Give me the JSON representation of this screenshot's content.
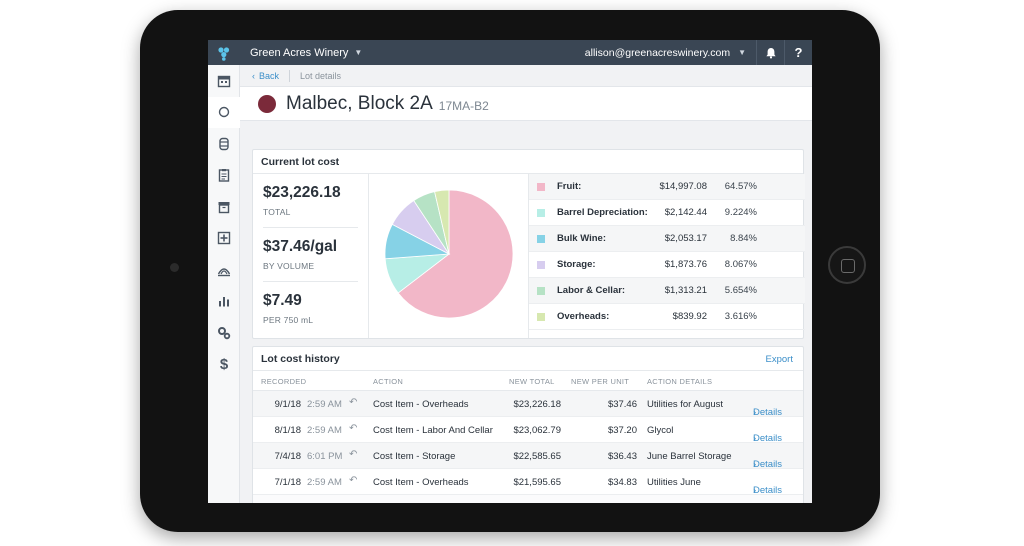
{
  "app": {
    "winery": "Green Acres Winery",
    "user_email": "allison@greenacreswinery.com"
  },
  "icons": {
    "brand": "grape-logo-icon",
    "bell": "bell-icon",
    "help": "help-icon"
  },
  "sidebar": {
    "items": [
      {
        "name": "calendar-icon"
      },
      {
        "name": "circle-icon",
        "active": true
      },
      {
        "name": "barrel-icon"
      },
      {
        "name": "clipboard-icon"
      },
      {
        "name": "archive-icon"
      },
      {
        "name": "plus-box-icon"
      },
      {
        "name": "vineyard-icon"
      },
      {
        "name": "bar-chart-icon"
      },
      {
        "name": "settings-icon"
      },
      {
        "name": "dollar-icon"
      }
    ]
  },
  "breadcrumb": {
    "back": "Back",
    "current": "Lot details"
  },
  "lot": {
    "name": "Malbec, Block 2A",
    "code": "17MA-B2",
    "color": "#7b2a3a"
  },
  "cost": {
    "title": "Current lot cost",
    "totals": [
      {
        "value": "$23,226.18",
        "label": "TOTAL"
      },
      {
        "value": "$37.46/gal",
        "label": "BY VOLUME"
      },
      {
        "value": "$7.49",
        "label": "PER 750 mL"
      }
    ]
  },
  "chart_data": {
    "type": "pie",
    "categories": [
      "Fruit:",
      "Barrel Depreciation:",
      "Bulk Wine:",
      "Storage:",
      "Labor & Cellar:",
      "Overheads:"
    ],
    "values": [
      64.57,
      9.224,
      8.84,
      8.067,
      5.654,
      3.616
    ],
    "amounts": [
      "$14,997.08",
      "$2,142.44",
      "$2,053.17",
      "$1,873.76",
      "$1,313.21",
      "$839.92"
    ],
    "percents": [
      "64.57%",
      "9.224%",
      "8.84%",
      "8.067%",
      "5.654%",
      "3.616%"
    ],
    "colors": [
      "#f2b7c8",
      "#b7eee6",
      "#86d2e6",
      "#d7cdef",
      "#b6e2c5",
      "#d7e8b0"
    ]
  },
  "history": {
    "title": "Lot cost history",
    "export": "Export",
    "columns": [
      "RECORDED",
      "ACTION",
      "NEW TOTAL",
      "NEW PER UNIT",
      "ACTION DETAILS"
    ],
    "rows": [
      {
        "date": "9/1/18",
        "time": "2:59 AM",
        "action": "Cost Item - Overheads",
        "total": "$23,226.18",
        "unit": "$37.46",
        "detail": "Utilities for August",
        "link": "Details"
      },
      {
        "date": "8/1/18",
        "time": "2:59 AM",
        "action": "Cost Item - Labor And Cellar",
        "total": "$23,062.79",
        "unit": "$37.20",
        "detail": "Glycol",
        "link": "Details"
      },
      {
        "date": "7/4/18",
        "time": "6:01 PM",
        "action": "Cost Item - Storage",
        "total": "$22,585.65",
        "unit": "$36.43",
        "detail": "June Barrel Storage",
        "link": "Details"
      },
      {
        "date": "7/1/18",
        "time": "2:59 AM",
        "action": "Cost Item - Overheads",
        "total": "$21,595.65",
        "unit": "$34.83",
        "detail": "Utilities June",
        "link": "Details"
      }
    ]
  }
}
